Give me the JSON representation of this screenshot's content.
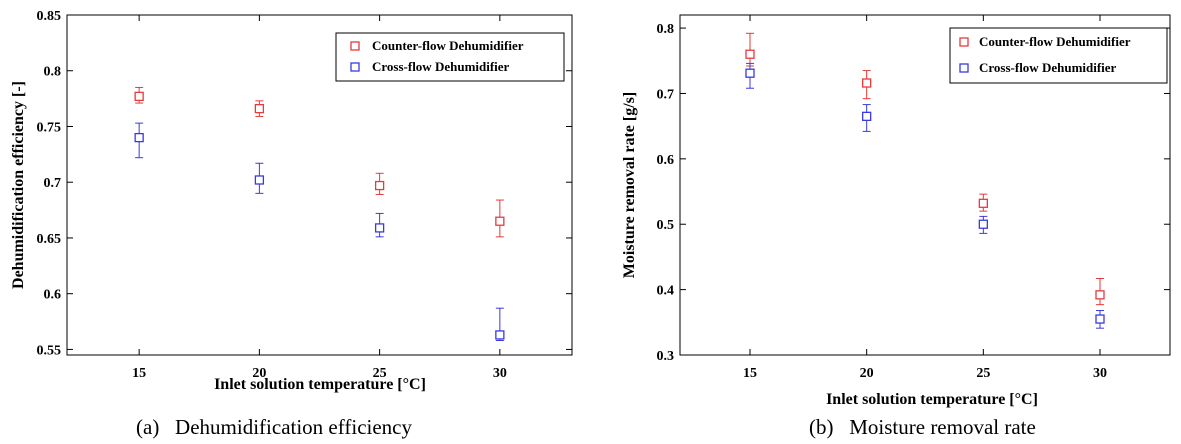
{
  "panels": [
    {
      "caption": "(a)   Dehumidification efficiency",
      "chart_data": {
        "type": "scatter",
        "xlabel": "Inlet solution temperature [°C]",
        "ylabel": "Dehumidification efficiency [-]",
        "x": [
          15,
          20,
          25,
          30
        ],
        "xlim": [
          12,
          33
        ],
        "ylim": [
          0.545,
          0.85
        ],
        "xticks": [
          "15",
          "20",
          "25",
          "30"
        ],
        "yticks": [
          "0.85",
          "0.8",
          "0.75",
          "0.7",
          "0.65",
          "0.6",
          "0.55"
        ],
        "grid": false,
        "legend_position": "top-right",
        "series": [
          {
            "name": "Counter-flow Dehumidifier",
            "color": "#e83a3a",
            "values": [
              0.777,
              0.766,
              0.697,
              0.665
            ],
            "err_low": [
              0.771,
              0.759,
              0.689,
              0.651
            ],
            "err_high": [
              0.785,
              0.773,
              0.708,
              0.684
            ]
          },
          {
            "name": "Cross-flow Dehumidifier",
            "color": "#3a3ae0",
            "values": [
              0.74,
              0.702,
              0.659,
              0.563
            ],
            "err_low": [
              0.722,
              0.69,
              0.651,
              0.558
            ],
            "err_high": [
              0.753,
              0.717,
              0.672,
              0.587
            ]
          }
        ]
      }
    },
    {
      "caption": "(b)   Moisture removal rate",
      "chart_data": {
        "type": "scatter",
        "xlabel": "Inlet solution temperature [°C]",
        "ylabel": "Moisture removal rate [g/s]",
        "x": [
          15,
          20,
          25,
          30
        ],
        "xlim": [
          12,
          33
        ],
        "ylim": [
          0.3,
          0.82
        ],
        "xticks": [
          "15",
          "20",
          "25",
          "30"
        ],
        "yticks": [
          "0.8",
          "0.7",
          "0.6",
          "0.5",
          "0.4",
          "0.3"
        ],
        "grid": false,
        "legend_position": "top-right",
        "series": [
          {
            "name": "Counter-flow Dehumidifier",
            "color": "#e83a3a",
            "values": [
              0.76,
              0.716,
              0.532,
              0.392
            ],
            "err_low": [
              0.742,
              0.692,
              0.52,
              0.377
            ],
            "err_high": [
              0.792,
              0.735,
              0.546,
              0.417
            ]
          },
          {
            "name": "Cross-flow Dehumidifier",
            "color": "#3a3ae0",
            "values": [
              0.731,
              0.665,
              0.5,
              0.355
            ],
            "err_low": [
              0.708,
              0.642,
              0.486,
              0.341
            ],
            "err_high": [
              0.746,
              0.683,
              0.512,
              0.368
            ]
          }
        ]
      }
    }
  ]
}
